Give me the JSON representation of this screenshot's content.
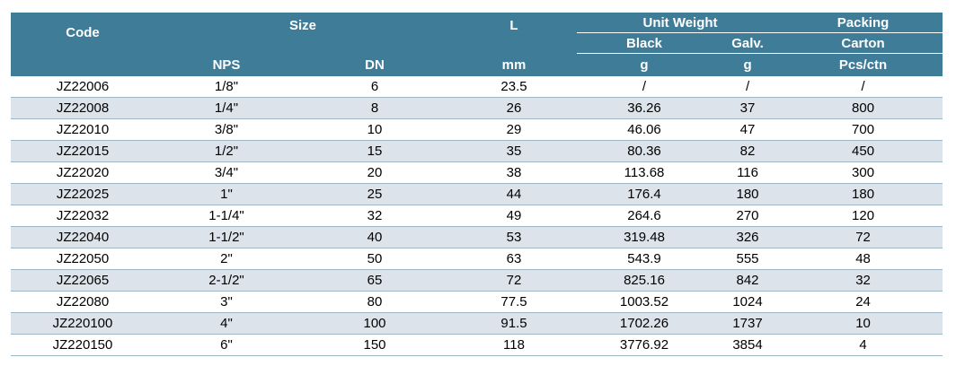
{
  "header": {
    "code": "Code",
    "size": "Size",
    "l": "L",
    "unit_weight": "Unit Weight",
    "packing": "Packing",
    "black": "Black",
    "galv": "Galv.",
    "carton": "Carton",
    "nps": "NPS",
    "dn": "DN",
    "mm": "mm",
    "g_black": "g",
    "g_galv": "g",
    "pcs_ctn": "Pcs/ctn"
  },
  "rows": [
    {
      "code": "JZ22006",
      "nps": "1/8\"",
      "dn": "6",
      "l": "23.5",
      "black": "/",
      "galv": "/",
      "pcs": "/"
    },
    {
      "code": "JZ22008",
      "nps": "1/4\"",
      "dn": "8",
      "l": "26",
      "black": "36.26",
      "galv": "37",
      "pcs": "800"
    },
    {
      "code": "JZ22010",
      "nps": "3/8\"",
      "dn": "10",
      "l": "29",
      "black": "46.06",
      "galv": "47",
      "pcs": "700"
    },
    {
      "code": "JZ22015",
      "nps": "1/2\"",
      "dn": "15",
      "l": "35",
      "black": "80.36",
      "galv": "82",
      "pcs": "450"
    },
    {
      "code": "JZ22020",
      "nps": "3/4\"",
      "dn": "20",
      "l": "38",
      "black": "113.68",
      "galv": "116",
      "pcs": "300"
    },
    {
      "code": "JZ22025",
      "nps": "1\"",
      "dn": "25",
      "l": "44",
      "black": "176.4",
      "galv": "180",
      "pcs": "180"
    },
    {
      "code": "JZ22032",
      "nps": "1-1/4\"",
      "dn": "32",
      "l": "49",
      "black": "264.6",
      "galv": "270",
      "pcs": "120"
    },
    {
      "code": "JZ22040",
      "nps": "1-1/2\"",
      "dn": "40",
      "l": "53",
      "black": "319.48",
      "galv": "326",
      "pcs": "72"
    },
    {
      "code": "JZ22050",
      "nps": "2\"",
      "dn": "50",
      "l": "63",
      "black": "543.9",
      "galv": "555",
      "pcs": "48"
    },
    {
      "code": "JZ22065",
      "nps": "2-1/2\"",
      "dn": "65",
      "l": "72",
      "black": "825.16",
      "galv": "842",
      "pcs": "32"
    },
    {
      "code": "JZ22080",
      "nps": "3\"",
      "dn": "80",
      "l": "77.5",
      "black": "1003.52",
      "galv": "1024",
      "pcs": "24"
    },
    {
      "code": "JZ220100",
      "nps": "4\"",
      "dn": "100",
      "l": "91.5",
      "black": "1702.26",
      "galv": "1737",
      "pcs": "10"
    },
    {
      "code": "JZ220150",
      "nps": "6\"",
      "dn": "150",
      "l": "118",
      "black": "3776.92",
      "galv": "3854",
      "pcs": "4"
    }
  ],
  "colors": {
    "header_bg": "#3f7c98",
    "alt_row_bg": "#dde3ea",
    "row_divider": "#9bb6c5"
  }
}
